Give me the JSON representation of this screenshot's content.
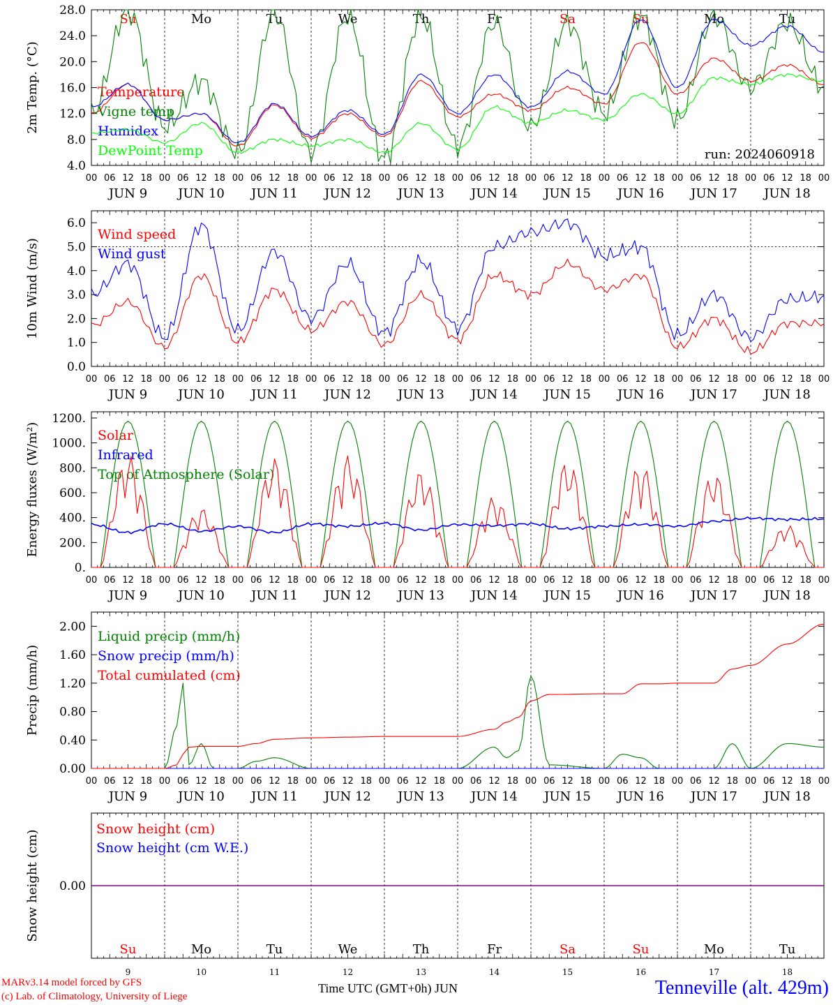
{
  "days": [
    "9",
    "10",
    "11",
    "12",
    "13",
    "14",
    "15",
    "16",
    "17",
    "18"
  ],
  "weekdays": [
    {
      "label": "Su",
      "color": "#ff0000"
    },
    {
      "label": "Mo",
      "color": "#000000"
    },
    {
      "label": "Tu",
      "color": "#000000"
    },
    {
      "label": "We",
      "color": "#000000"
    },
    {
      "label": "Th",
      "color": "#000000"
    },
    {
      "label": "Fr",
      "color": "#000000"
    },
    {
      "label": "Sa",
      "color": "#ff0000"
    },
    {
      "label": "Su",
      "color": "#ff0000"
    },
    {
      "label": "Mo",
      "color": "#000000"
    },
    {
      "label": "Tu",
      "color": "#000000"
    }
  ],
  "hour_ticks": [
    "00",
    "06",
    "12",
    "18"
  ],
  "date_labels": [
    "JUN  9",
    "JUN 10",
    "JUN 11",
    "JUN 12",
    "JUN 13",
    "JUN 14",
    "JUN 15",
    "JUN 16",
    "JUN 17",
    "JUN 18"
  ],
  "footer": {
    "model": "MARv3.14 model forced by GFS",
    "lab": "(c) Lab. of Climatology, University of Liege",
    "xaxis": "Time UTC (GMT+0h) JUN",
    "station": "Tenneville (alt. 429m)"
  },
  "chart_data": [
    {
      "type": "line",
      "ylabel": "2m Temp. (°C)",
      "ylim": [
        4,
        28
      ],
      "yticks": [
        "4.0",
        "8.0",
        "12.0",
        "16.0",
        "20.0",
        "24.0",
        "28.0"
      ],
      "annotation": "run: 2024060918",
      "x": [
        0,
        12,
        24,
        36,
        48,
        60,
        72,
        84,
        96,
        108,
        120,
        132,
        144,
        156,
        168,
        180,
        192,
        204,
        216,
        228,
        240
      ],
      "series": [
        {
          "name": "Temperature",
          "color": "#ff0000",
          "values": [
            12.0,
            16.5,
            11.0,
            12.0,
            7.0,
            13.3,
            8.2,
            12.0,
            8.5,
            17.0,
            11.5,
            15.0,
            12.5,
            16.0,
            13.5,
            23.0,
            15.0,
            20.5,
            17.0,
            19.5,
            16.5
          ]
        },
        {
          "name": "Vigne temp",
          "color": "#008000",
          "values": [
            12.0,
            28.0,
            10.0,
            17.0,
            6.0,
            27.5,
            6.0,
            27.0,
            5.0,
            27.0,
            7.0,
            26.0,
            10.0,
            26.0,
            12.0,
            27.0,
            11.0,
            27.0,
            16.0,
            26.0,
            16.0
          ]
        },
        {
          "name": "Humidex",
          "color": "#0000ff",
          "values": [
            13.0,
            16.5,
            11.0,
            12.0,
            7.5,
            13.5,
            8.5,
            12.5,
            8.8,
            18.0,
            12.0,
            18.0,
            13.0,
            18.5,
            15.0,
            26.5,
            16.0,
            26.5,
            22.5,
            25.5,
            21.5
          ]
        },
        {
          "name": "DewPoint Temp",
          "color": "#00ff00",
          "values": [
            9.0,
            9.5,
            7.5,
            10.5,
            6.0,
            8.0,
            7.0,
            8.0,
            6.0,
            10.5,
            6.5,
            13.0,
            10.5,
            12.5,
            11.0,
            15.0,
            12.0,
            17.5,
            16.5,
            18.0,
            17.0
          ]
        }
      ]
    },
    {
      "type": "line",
      "ylabel": "10m Wind (m/s)",
      "ylim": [
        0,
        6.5
      ],
      "yticks": [
        "0.0",
        "1.0",
        "2.0",
        "3.0",
        "4.0",
        "5.0",
        "6.0"
      ],
      "reference_line": 5.0,
      "x": [
        0,
        12,
        24,
        36,
        48,
        60,
        72,
        84,
        96,
        108,
        120,
        132,
        144,
        156,
        168,
        180,
        192,
        204,
        216,
        228,
        240
      ],
      "series": [
        {
          "name": "Wind speed",
          "color": "#ff0000",
          "values": [
            1.7,
            2.7,
            0.8,
            3.8,
            1.0,
            3.2,
            1.5,
            2.7,
            0.9,
            3.0,
            1.1,
            3.8,
            3.0,
            4.3,
            3.2,
            3.8,
            0.8,
            2.0,
            0.6,
            1.8,
            1.8
          ]
        },
        {
          "name": "Wind gust",
          "color": "#0000ff",
          "values": [
            3.0,
            4.3,
            1.2,
            5.9,
            1.5,
            4.8,
            2.0,
            4.3,
            1.4,
            4.4,
            1.6,
            5.0,
            5.6,
            6.0,
            4.6,
            5.0,
            1.3,
            3.0,
            1.2,
            2.8,
            2.9
          ]
        }
      ]
    },
    {
      "type": "line",
      "ylabel": "Energy fluxes (W/m²)",
      "ylim": [
        0,
        1250
      ],
      "yticks": [
        "0.",
        "200.",
        "400.",
        "600.",
        "800.",
        "1000.",
        "1200."
      ],
      "x_note": "hours from JUN 9 00 UTC",
      "solar_peaks": [
        910,
        480,
        880,
        900,
        780,
        570,
        860,
        840,
        760,
        340
      ],
      "toa_peak": 1175,
      "series": [
        {
          "name": "Solar",
          "color": "#ff0000"
        },
        {
          "name": "Infrared",
          "color": "#0000ff",
          "values": [
            345,
            280,
            350,
            290,
            330,
            280,
            350,
            330,
            355,
            300,
            345,
            335,
            350,
            310,
            330,
            345,
            330,
            370,
            395,
            385,
            390
          ]
        },
        {
          "name": "Top of Atmosphere (Solar)",
          "color": "#008000"
        }
      ]
    },
    {
      "type": "line",
      "ylabel": "Precip (mm/h)",
      "ylim": [
        0,
        2.2
      ],
      "yticks": [
        "0.00",
        "0.40",
        "0.80",
        "1.20",
        "1.60",
        "2.00"
      ],
      "x": [
        0,
        24,
        28,
        30,
        32,
        36,
        40,
        48,
        54,
        60,
        72,
        84,
        96,
        108,
        120,
        132,
        136,
        140,
        144,
        150,
        168,
        174,
        180,
        186,
        192,
        204,
        210,
        216,
        228,
        240
      ],
      "series": [
        {
          "name": "Liquid precip (mm/h)",
          "color": "#008000",
          "values": [
            0,
            0,
            0.6,
            1.2,
            0.05,
            0.35,
            0,
            0,
            0.1,
            0.15,
            0,
            0,
            0,
            0,
            0,
            0.3,
            0.15,
            0.25,
            1.3,
            0.05,
            0,
            0.2,
            0.15,
            0,
            0,
            0,
            0.35,
            0,
            0.35,
            0.3
          ]
        },
        {
          "name": "Snow precip (mm/h)",
          "color": "#0000ff",
          "values": [
            0,
            0,
            0,
            0,
            0,
            0,
            0,
            0,
            0,
            0,
            0,
            0,
            0,
            0,
            0,
            0,
            0,
            0,
            0,
            0,
            0,
            0,
            0,
            0,
            0,
            0,
            0,
            0,
            0,
            0
          ]
        },
        {
          "name": "Total cumulated (cm)",
          "color": "#ff0000",
          "values": [
            0,
            0,
            0.05,
            0.2,
            0.3,
            0.31,
            0.31,
            0.31,
            0.35,
            0.41,
            0.43,
            0.44,
            0.45,
            0.45,
            0.45,
            0.55,
            0.65,
            0.72,
            0.95,
            1.04,
            1.05,
            1.05,
            1.19,
            1.19,
            1.2,
            1.2,
            1.4,
            1.45,
            1.75,
            2.03
          ]
        }
      ]
    },
    {
      "type": "line",
      "ylabel": "Snow height (cm)",
      "yticks": [
        "0.00"
      ],
      "x": [
        0,
        240
      ],
      "series": [
        {
          "name": "Snow height (cm)",
          "color": "#ff0000",
          "values": [
            0,
            0
          ]
        },
        {
          "name": "Snow height (cm W.E.)",
          "color": "#0000ff",
          "values": [
            0,
            0
          ]
        }
      ]
    }
  ]
}
